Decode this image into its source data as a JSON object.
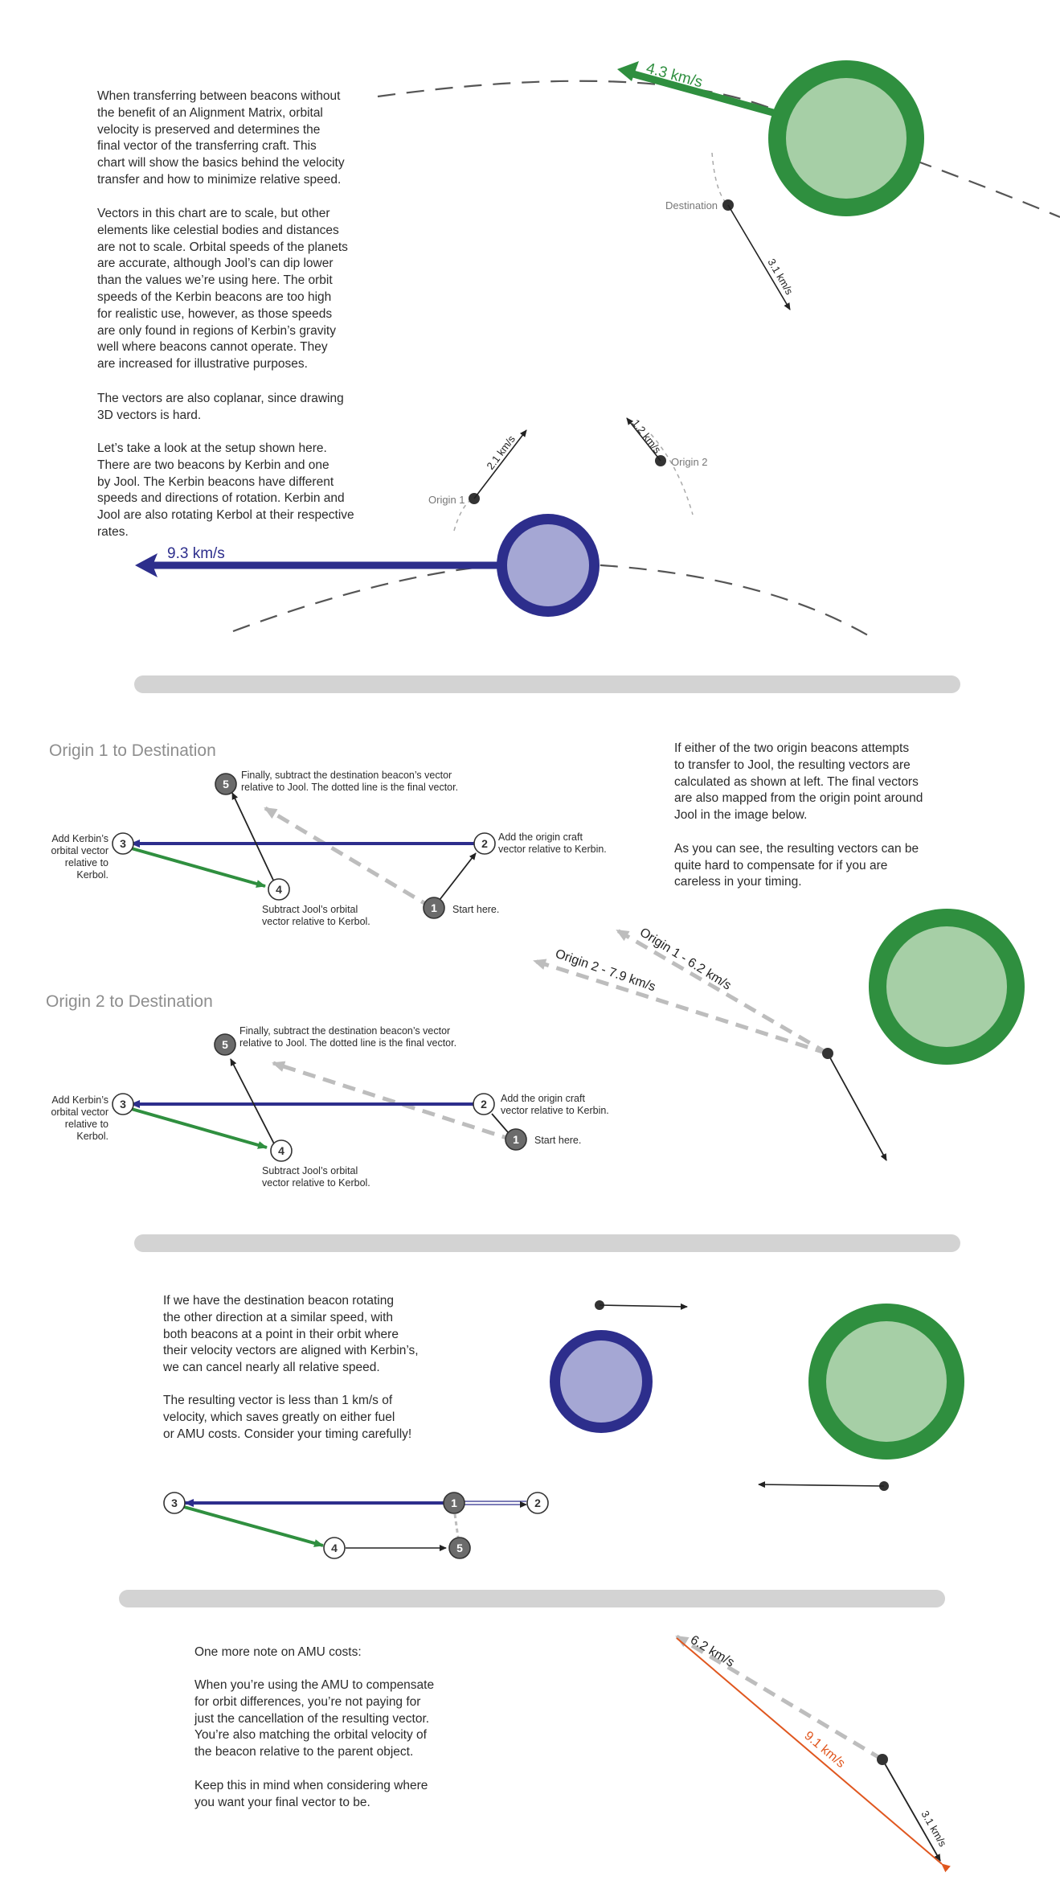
{
  "colors": {
    "kerbin_blue": "#2d2e8c",
    "kerbin_fill": "#a5a7d4",
    "jool_green": "#2f8f3f",
    "jool_fill": "#a6cfa6",
    "final_vector_gray": "#bdbdbd",
    "result_orange": "#e0571f",
    "separator": "#d3d3d3"
  },
  "intro": {
    "para1": "When transferring between beacons without\nthe benefit of an Alignment Matrix, orbital\nvelocity is preserved and determines the\nfinal vector of the transferring craft.  This\nchart will show the basics behind the velocity\ntransfer and how to minimize relative speed.",
    "para2": "Vectors in this chart are to scale, but other\nelements like celestial bodies and distances\nare not to scale.  Orbital speeds of the planets\nare accurate, although Jool’s can dip lower\nthan the values we’re using here.  The orbit\nspeeds of the Kerbin beacons are too high\nfor realistic use, however, as those speeds\nare only found in regions of Kerbin’s gravity\nwell where beacons cannot operate.  They\nare increased for illustrative purposes.",
    "para3": "The vectors are also coplanar, since drawing\n3D vectors is hard.",
    "para4": "Let’s take a look at the setup shown here.\nThere are two beacons by Kerbin and one\nby Jool.  The Kerbin beacons have different\nspeeds and directions of rotation.  Kerbin and\nJool are also rotating Kerbol at their respective\nrates."
  },
  "setup_diagram": {
    "jool_speed": "4.3 km/s",
    "kerbin_speed": "9.3 km/s",
    "destination_label": "Destination",
    "destination_speed": "3.1 km/s",
    "origin1_label": "Origin 1",
    "origin1_speed": "2.1 km/s",
    "origin2_label": "Origin 2",
    "origin2_speed": "1.2 km/s"
  },
  "section2": {
    "title1": "Origin 1 to Destination",
    "title2": "Origin 2 to Destination",
    "steps": {
      "n1": "1",
      "n2": "2",
      "n3": "3",
      "n4": "4",
      "n5": "5",
      "step1": "Start here.",
      "step2": "Add the origin craft\nvector relative to Kerbin.",
      "step3": "Add Kerbin’s\norbital vector\nrelative to\nKerbol.",
      "step4": "Subtract Jool’s orbital\nvector relative to Kerbol.",
      "step5": "Finally, subtract the destination beacon’s vector\nrelative to Jool.  The dotted line is the final vector."
    },
    "right_text": "If either of the two origin beacons attempts\nto transfer to Jool, the resulting vectors are\ncalculated as shown at left.  The final vectors\nare also mapped from the origin point around\nJool in the image below.\n\nAs you can see, the resulting vectors can be\nquite hard to compensate for if you are\ncareless in your timing.",
    "origin1_result": "Origin 1 - 6.2 km/s",
    "origin2_result": "Origin 2 - 7.9 km/s"
  },
  "section3": {
    "text1": "If we have the destination beacon rotating\nthe other direction at a similar speed, with\nboth beacons at a point in their orbit where\ntheir velocity vectors are aligned with Kerbin’s,\nwe can cancel nearly all relative speed.",
    "text2": "The resulting vector is less than 1 km/s of\nvelocity, which saves greatly on either fuel\nor AMU costs.  Consider your timing carefully!"
  },
  "section4": {
    "title": "One more note on AMU costs:",
    "text1": "When you’re using the AMU to compensate\nfor orbit differences, you’re not paying for\njust the cancellation of the resulting vector.\nYou’re also matching the orbital velocity of\nthe beacon relative to the parent object.",
    "text2": "Keep this in mind when considering where\nyou want your final vector to be.",
    "v1": "6.2 km/s",
    "v2": "9.1 km/s",
    "v3": "3.1 km/s"
  }
}
